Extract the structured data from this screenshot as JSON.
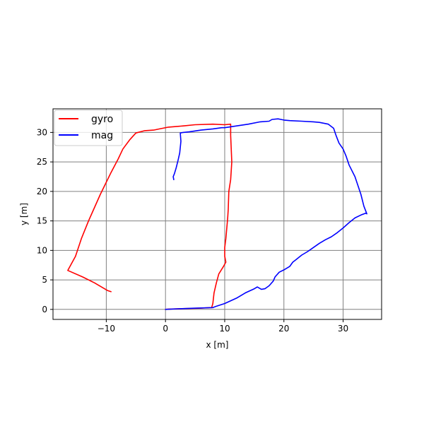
{
  "chart_data": {
    "type": "line",
    "title": "",
    "xlabel": "x [m]",
    "ylabel": "y [m]",
    "xlim": [
      -19,
      36.5
    ],
    "ylim": [
      -1.7,
      34.0
    ],
    "xticks": [
      -10,
      0,
      10,
      20,
      30
    ],
    "yticks": [
      0,
      5,
      10,
      15,
      20,
      25,
      30
    ],
    "grid": true,
    "legend_position": "top-left",
    "series": [
      {
        "name": "gyro",
        "color": "#ff0000",
        "x": [
          -9.2,
          -9.8,
          -12.0,
          -14.0,
          -16.5,
          -15.2,
          -14.2,
          -13.0,
          -11.0,
          -9.3,
          -8.0,
          -7.2,
          -6.0,
          -5.0,
          -3.5,
          -2.0,
          -1.0,
          0.5,
          3.0,
          5.0,
          8.0,
          10.0,
          11.0,
          11.0,
          11.2,
          11.0,
          10.7,
          10.6,
          10.5,
          10.2,
          10.0,
          10.0,
          10.2,
          9.8,
          9.0,
          8.6,
          8.2,
          8.0,
          7.8,
          7.5,
          6.0,
          4.0,
          2.0,
          0.5,
          0.0
        ],
        "y": [
          3.0,
          3.2,
          4.5,
          5.5,
          6.6,
          9.0,
          12.0,
          15.0,
          19.5,
          23.0,
          25.5,
          27.2,
          28.8,
          29.9,
          30.3,
          30.4,
          30.6,
          30.9,
          31.1,
          31.3,
          31.4,
          31.3,
          31.4,
          29.5,
          25.0,
          22.0,
          20.0,
          17.0,
          15.5,
          12.0,
          10.5,
          9.0,
          8.0,
          7.3,
          6.0,
          4.5,
          2.8,
          1.0,
          0.3,
          0.3,
          0.2,
          0.15,
          0.1,
          0.05,
          0.0
        ],
        "values": [
          3.0,
          3.2,
          4.5,
          5.5,
          6.6,
          9.0,
          12.0,
          15.0,
          19.5,
          23.0,
          25.5,
          27.2,
          28.8,
          29.9,
          30.3,
          30.4,
          30.6,
          30.9,
          31.1,
          31.3,
          31.4,
          31.3,
          31.4,
          29.5,
          25.0,
          22.0,
          20.0,
          17.0,
          15.5,
          12.0,
          10.5,
          9.0,
          8.0,
          7.3,
          6.0,
          4.5,
          2.8,
          1.0,
          0.3,
          0.3,
          0.2,
          0.15,
          0.1,
          0.05,
          0.0
        ]
      },
      {
        "name": "mag",
        "color": "#0000ff",
        "x": [
          0.0,
          2.0,
          5.0,
          8.0,
          8.5,
          10.0,
          12.0,
          13.5,
          15.0,
          15.5,
          16.2,
          16.8,
          17.5,
          18.2,
          18.5,
          19.2,
          20.0,
          21.0,
          21.5,
          22.0,
          22.5,
          23.0,
          24.0,
          25.0,
          26.0,
          27.0,
          28.0,
          29.0,
          30.0,
          31.0,
          32.0,
          33.0,
          33.8,
          34.0,
          33.5,
          33.0,
          32.5,
          32.0,
          31.0,
          30.5,
          30.0,
          29.3,
          28.8,
          28.4,
          28.0,
          27.5,
          26.0,
          25.0,
          23.0,
          21.0,
          20.0,
          19.5,
          19.0,
          18.0,
          17.5,
          16.0,
          14.0,
          12.0,
          10.0,
          9.5,
          8.0,
          6.0,
          4.0,
          3.0,
          2.5,
          2.6,
          2.4,
          2.1,
          1.8,
          1.5,
          1.3,
          1.4
        ],
        "y": [
          0.0,
          0.1,
          0.2,
          0.3,
          0.5,
          1.0,
          1.9,
          2.8,
          3.5,
          3.8,
          3.4,
          3.5,
          4.0,
          4.8,
          5.5,
          6.3,
          6.7,
          7.3,
          8.0,
          8.4,
          8.8,
          9.2,
          9.8,
          10.5,
          11.2,
          11.8,
          12.3,
          13.0,
          13.8,
          14.7,
          15.5,
          16.0,
          16.3,
          16.2,
          17.5,
          19.5,
          21.0,
          22.5,
          24.5,
          26.0,
          27.2,
          28.2,
          29.5,
          30.7,
          31.0,
          31.4,
          31.7,
          31.8,
          31.9,
          32.0,
          32.1,
          32.2,
          32.3,
          32.2,
          31.9,
          31.8,
          31.4,
          31.1,
          30.8,
          30.8,
          30.6,
          30.4,
          30.1,
          30.0,
          29.9,
          28.5,
          26.5,
          25.2,
          24.0,
          23.0,
          22.5,
          22.0
        ],
        "values": [
          0.0,
          0.1,
          0.2,
          0.3,
          0.5,
          1.0,
          1.9,
          2.8,
          3.5,
          3.8,
          3.4,
          3.5,
          4.0,
          4.8,
          5.5,
          6.3,
          6.7,
          7.3,
          8.0,
          8.4,
          8.8,
          9.2,
          9.8,
          10.5,
          11.2,
          11.8,
          12.3,
          13.0,
          13.8,
          14.7,
          15.5,
          16.0,
          16.3,
          16.2,
          17.5,
          19.5,
          21.0,
          22.5,
          24.5,
          26.0,
          27.2,
          28.2,
          29.5,
          30.7,
          31.0,
          31.4,
          31.7,
          31.8,
          31.9,
          32.0,
          32.1,
          32.2,
          32.3,
          32.2,
          31.9,
          31.8,
          31.4,
          31.1,
          30.8,
          30.8,
          30.6,
          30.4,
          30.1,
          30.0,
          29.9,
          28.5,
          26.5,
          25.2,
          24.0,
          23.0,
          22.5,
          22.0
        ]
      }
    ]
  }
}
